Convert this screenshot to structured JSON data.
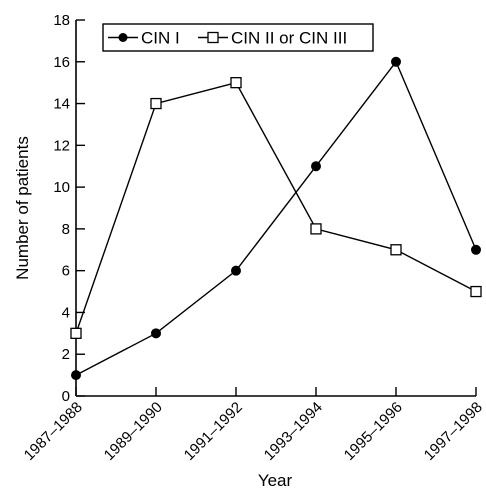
{
  "chart_data": {
    "type": "line",
    "title": "",
    "xlabel": "Year",
    "ylabel": "Number of patients",
    "categories": [
      "1987–1988",
      "1989–1990",
      "1991–1992",
      "1993–1994",
      "1995–1996",
      "1997–1998"
    ],
    "ylim": [
      0,
      18
    ],
    "yticks": [
      0,
      2,
      4,
      6,
      8,
      10,
      12,
      14,
      16,
      18
    ],
    "grid": false,
    "legend_position": "top-left",
    "series": [
      {
        "name": "CIN I",
        "marker": "filled-circle",
        "color": "#000000",
        "values": [
          1,
          3,
          6,
          11,
          16,
          7
        ]
      },
      {
        "name": "CIN II or CIN III",
        "marker": "open-square",
        "color": "#000000",
        "values": [
          3,
          14,
          15,
          8,
          7,
          5
        ]
      }
    ]
  }
}
